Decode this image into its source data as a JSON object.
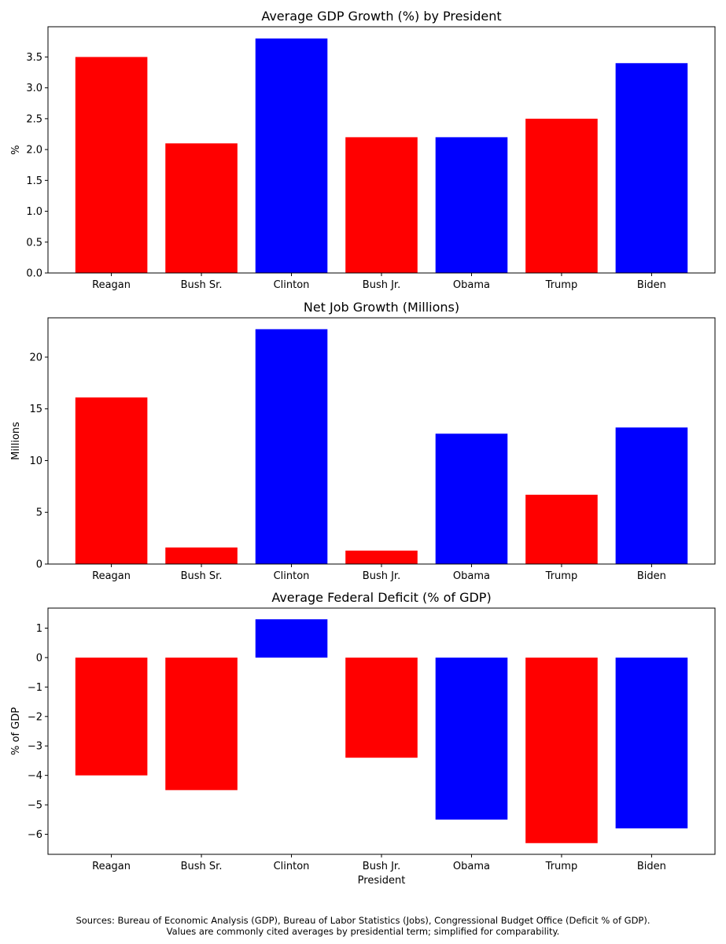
{
  "chart_data": [
    {
      "type": "bar",
      "title": "Average GDP Growth (%) by President",
      "xlabel": "",
      "ylabel": "%",
      "categories": [
        "Reagan",
        "Bush Sr.",
        "Clinton",
        "Bush Jr.",
        "Obama",
        "Trump",
        "Biden"
      ],
      "values": [
        3.5,
        2.1,
        3.8,
        2.2,
        2.2,
        2.5,
        3.4
      ],
      "bar_colors": [
        "#ff0000",
        "#ff0000",
        "#0000ff",
        "#ff0000",
        "#0000ff",
        "#ff0000",
        "#0000ff"
      ],
      "ylim": [
        0,
        3.99
      ],
      "yticks": [
        0,
        0.5,
        1,
        1.5,
        2,
        2.5,
        3,
        3.5
      ],
      "ytick_labels": [
        "0.0",
        "0.5",
        "1.0",
        "1.5",
        "2.0",
        "2.5",
        "3.0",
        "3.5"
      ],
      "grid": false,
      "legend": "none"
    },
    {
      "type": "bar",
      "title": "Net Job Growth (Millions)",
      "xlabel": "",
      "ylabel": "Millions",
      "categories": [
        "Reagan",
        "Bush Sr.",
        "Clinton",
        "Bush Jr.",
        "Obama",
        "Trump",
        "Biden"
      ],
      "values": [
        16.1,
        1.6,
        22.7,
        1.3,
        12.6,
        6.7,
        13.2
      ],
      "bar_colors": [
        "#ff0000",
        "#ff0000",
        "#0000ff",
        "#ff0000",
        "#0000ff",
        "#ff0000",
        "#0000ff"
      ],
      "ylim": [
        0,
        23.8
      ],
      "yticks": [
        0,
        5,
        10,
        15,
        20
      ],
      "ytick_labels": [
        "0",
        "5",
        "10",
        "15",
        "20"
      ],
      "grid": false,
      "legend": "none"
    },
    {
      "type": "bar",
      "title": "Average Federal Deficit (% of GDP)",
      "xlabel": "President",
      "ylabel": "% of GDP",
      "categories": [
        "Reagan",
        "Bush Sr.",
        "Clinton",
        "Bush Jr.",
        "Obama",
        "Trump",
        "Biden"
      ],
      "values": [
        -4.0,
        -4.5,
        1.3,
        -3.4,
        -5.5,
        -6.3,
        -5.8
      ],
      "bar_colors": [
        "#ff0000",
        "#ff0000",
        "#0000ff",
        "#ff0000",
        "#0000ff",
        "#ff0000",
        "#0000ff"
      ],
      "ylim": [
        -6.68,
        1.68
      ],
      "yticks": [
        1,
        0,
        -1,
        -2,
        -3,
        -4,
        -5,
        -6
      ],
      "ytick_labels": [
        "1",
        "0",
        "−1",
        "−2",
        "−3",
        "−4",
        "−5",
        "−6"
      ],
      "grid": false,
      "legend": "none"
    }
  ],
  "sources": {
    "line1": "Sources: Bureau of Economic Analysis (GDP), Bureau of Labor Statistics (Jobs), Congressional Budget Office (Deficit % of GDP).",
    "line2": "Values are commonly cited averages by presidential term; simplified for comparability."
  }
}
